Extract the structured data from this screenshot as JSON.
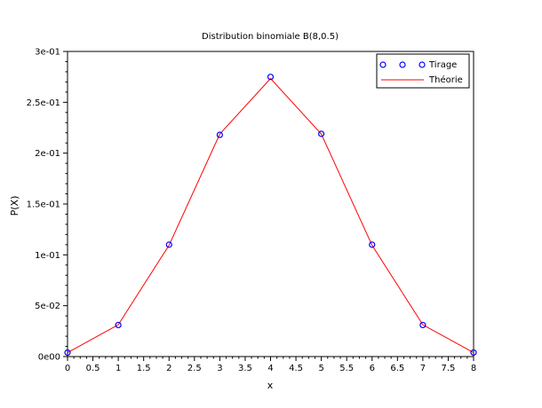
{
  "chart_data": {
    "type": "scatter",
    "title": "Distribution binomiale B(8,0.5)",
    "xlabel": "x",
    "ylabel": "P(X)",
    "xlim": [
      0,
      8
    ],
    "ylim": [
      0,
      0.3
    ],
    "x_ticks": [
      "0",
      "0.5",
      "1",
      "1.5",
      "2",
      "2.5",
      "3",
      "3.5",
      "4",
      "4.5",
      "5",
      "5.5",
      "6",
      "6.5",
      "7",
      "7.5",
      "8"
    ],
    "y_ticks": [
      "0e00",
      "5e-02",
      "1e-01",
      "1.5e-01",
      "2e-01",
      "2.5e-01",
      "3e-01"
    ],
    "grid": false,
    "legend_position": "top-right",
    "series": [
      {
        "name": "Tirage",
        "kind": "markers",
        "color": "#0000ff",
        "x": [
          0,
          1,
          2,
          3,
          4,
          5,
          6,
          7,
          8
        ],
        "y": [
          0.0039,
          0.031,
          0.11,
          0.218,
          0.275,
          0.219,
          0.11,
          0.031,
          0.004
        ]
      },
      {
        "name": "Théorie",
        "kind": "line",
        "color": "#ff0000",
        "x": [
          0,
          1,
          2,
          3,
          4,
          5,
          6,
          7,
          8
        ],
        "y": [
          0.0039,
          0.03125,
          0.1094,
          0.2188,
          0.2734,
          0.2188,
          0.1094,
          0.03125,
          0.0039
        ]
      }
    ]
  }
}
